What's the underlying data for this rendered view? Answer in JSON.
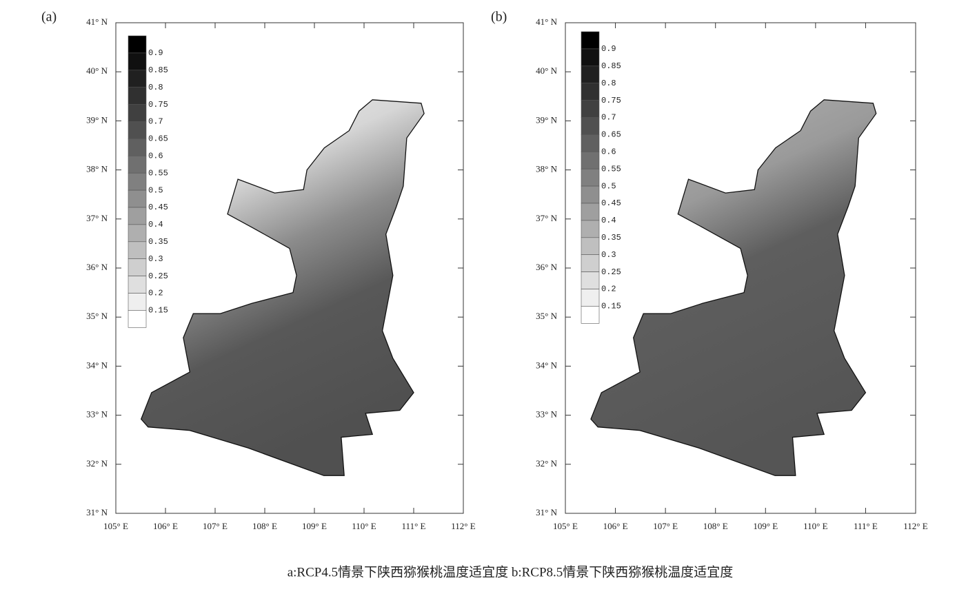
{
  "panels": [
    {
      "label": "(a)",
      "y_labels": [
        "41° N",
        "40° N",
        "39° N",
        "38° N",
        "37° N",
        "36° N",
        "35° N",
        "34° N",
        "33° N",
        "32° N",
        "31° N"
      ],
      "x_labels": [
        "105° E",
        "106° E",
        "107° E",
        "108° E",
        "109° E",
        "110° E",
        "111° E",
        "112° E"
      ],
      "legend": [
        0.9,
        0.85,
        0.8,
        0.75,
        0.7,
        0.65,
        0.6,
        0.55,
        0.5,
        0.45,
        0.4,
        0.35,
        0.3,
        0.25,
        0.2,
        0.15
      ]
    },
    {
      "label": "(b)",
      "y_labels": [
        "41° N",
        "40° N",
        "39° N",
        "38° N",
        "37° N",
        "36° N",
        "35° N",
        "34° N",
        "33° N",
        "32° N",
        "31° N"
      ],
      "x_labels": [
        "105° E",
        "106° E",
        "107° E",
        "108° E",
        "109° E",
        "110° E",
        "111° E",
        "112° E"
      ],
      "legend": [
        0.9,
        0.85,
        0.8,
        0.75,
        0.7,
        0.65,
        0.6,
        0.55,
        0.5,
        0.45,
        0.4,
        0.35,
        0.3,
        0.25,
        0.2,
        0.15
      ]
    }
  ],
  "caption": "a:RCP4.5情景下陕西猕猴桃温度适宜度   b:RCP8.5情景下陕西猕猴桃温度适宜度"
}
